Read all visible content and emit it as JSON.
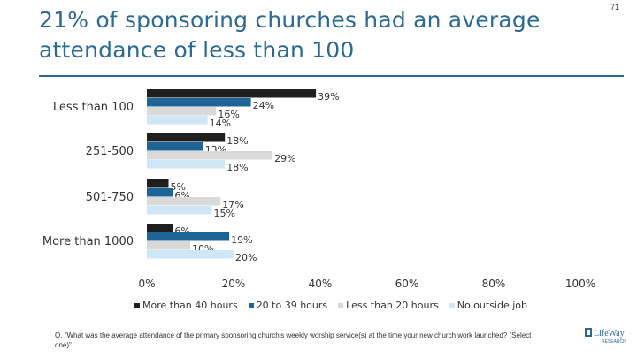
{
  "slide": {
    "title": "21% of sponsoring churches had an average attendance of less than 100",
    "page_number": "71",
    "footnote": "Q. \"What was the average attendance of the primary sponsoring church's weekly worship service(s) at the time your new church work launched? (Select one)\"",
    "logo_text": "LifeWay",
    "logo_sub": "RESEARCH"
  },
  "chart_data": {
    "type": "bar",
    "orientation": "horizontal",
    "title": "21% of sponsoring churches had an average attendance of less than 100",
    "categories": [
      "Less than 100",
      "251-500",
      "501-750",
      "More than 1000"
    ],
    "series": [
      {
        "name": "More than 40 hours",
        "color": "#1f1f1f",
        "values": [
          39,
          18,
          5,
          6
        ]
      },
      {
        "name": "20 to 39 hours",
        "color": "#1f6496",
        "values": [
          24,
          13,
          6,
          19
        ]
      },
      {
        "name": "Less than 20 hours",
        "color": "#d9d9d9",
        "values": [
          16,
          29,
          17,
          10
        ]
      },
      {
        "name": "No outside job",
        "color": "#cfe6f7",
        "values": [
          14,
          18,
          15,
          20
        ]
      }
    ],
    "data_labels": [
      [
        "39%",
        "24%",
        "16%",
        "14%"
      ],
      [
        "18%",
        "13%",
        "29%",
        "18%"
      ],
      [
        "5%",
        "6%",
        "17%",
        "15%"
      ],
      [
        "6%",
        "19%",
        "10%",
        "20%"
      ]
    ],
    "xlim": [
      0,
      100
    ],
    "x_ticks": [
      0,
      20,
      40,
      60,
      80,
      100
    ],
    "x_tick_labels": [
      "0%",
      "20%",
      "40%",
      "60%",
      "80%",
      "100%"
    ],
    "xlabel": "",
    "ylabel": "",
    "grid": false,
    "legend_position": "bottom"
  }
}
